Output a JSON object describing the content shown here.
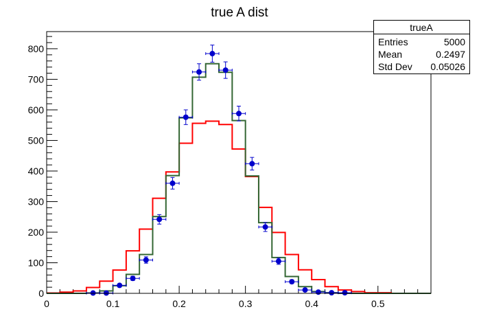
{
  "chart_data": {
    "type": "bar",
    "title": "true A dist",
    "xlabel": "",
    "ylabel": "",
    "xlim": [
      0,
      0.58
    ],
    "ylim": [
      0,
      856
    ],
    "bin_width": 0.02,
    "x_ticks": [
      "0",
      "0.1",
      "0.2",
      "0.3",
      "0.4",
      "0.5"
    ],
    "x_tick_values": [
      0,
      0.1,
      0.2,
      0.3,
      0.4,
      0.5
    ],
    "y_ticks": [
      "0",
      "100",
      "200",
      "300",
      "400",
      "500",
      "600",
      "700",
      "800"
    ],
    "y_tick_values": [
      0,
      100,
      200,
      300,
      400,
      500,
      600,
      700,
      800
    ],
    "series": [
      {
        "name": "red histogram",
        "kind": "step",
        "color": "#ff0000",
        "bin_low_edges": [
          0,
          0.02,
          0.04,
          0.06,
          0.08,
          0.1,
          0.12,
          0.14,
          0.16,
          0.18,
          0.2,
          0.22,
          0.24,
          0.26,
          0.28,
          0.3,
          0.32,
          0.34,
          0.36,
          0.38,
          0.4,
          0.42,
          0.44,
          0.46,
          0.48,
          0.5,
          0.52,
          0.54,
          0.56
        ],
        "values": [
          1,
          4,
          8,
          19,
          40,
          76,
          139,
          210,
          311,
          397,
          491,
          556,
          563,
          552,
          472,
          382,
          281,
          199,
          127,
          77,
          45,
          22,
          11,
          6,
          2,
          2,
          0,
          0,
          0
        ]
      },
      {
        "name": "trueA",
        "kind": "step",
        "color": "#336633",
        "bin_low_edges": [
          0,
          0.02,
          0.04,
          0.06,
          0.08,
          0.1,
          0.12,
          0.14,
          0.16,
          0.18,
          0.2,
          0.22,
          0.24,
          0.26,
          0.28,
          0.3,
          0.32,
          0.34,
          0.36,
          0.38,
          0.4,
          0.42,
          0.44,
          0.46,
          0.48,
          0.5,
          0.52,
          0.54,
          0.56
        ],
        "values": [
          0,
          0,
          0,
          1,
          8,
          25,
          62,
          127,
          251,
          385,
          574,
          707,
          751,
          723,
          565,
          384,
          231,
          117,
          55,
          22,
          6,
          2,
          0,
          0,
          0,
          0,
          0,
          0,
          0
        ]
      },
      {
        "name": "data points",
        "kind": "points",
        "color": "#0000cc",
        "x": [
          0.07,
          0.09,
          0.11,
          0.13,
          0.15,
          0.17,
          0.19,
          0.21,
          0.23,
          0.25,
          0.27,
          0.29,
          0.31,
          0.33,
          0.35,
          0.37,
          0.39,
          0.41,
          0.43,
          0.45
        ],
        "values": [
          1,
          1,
          26,
          49,
          109,
          242,
          360,
          576,
          724,
          784,
          730,
          588,
          424,
          217,
          105,
          38,
          11,
          4,
          2,
          2
        ]
      }
    ],
    "stats_box": {
      "title": "trueA",
      "rows": [
        {
          "label": "Entries",
          "value": "5000"
        },
        {
          "label": "Mean",
          "value": "0.2497"
        },
        {
          "label": "Std Dev",
          "value": "0.05026"
        }
      ],
      "placement": "top-right"
    }
  }
}
